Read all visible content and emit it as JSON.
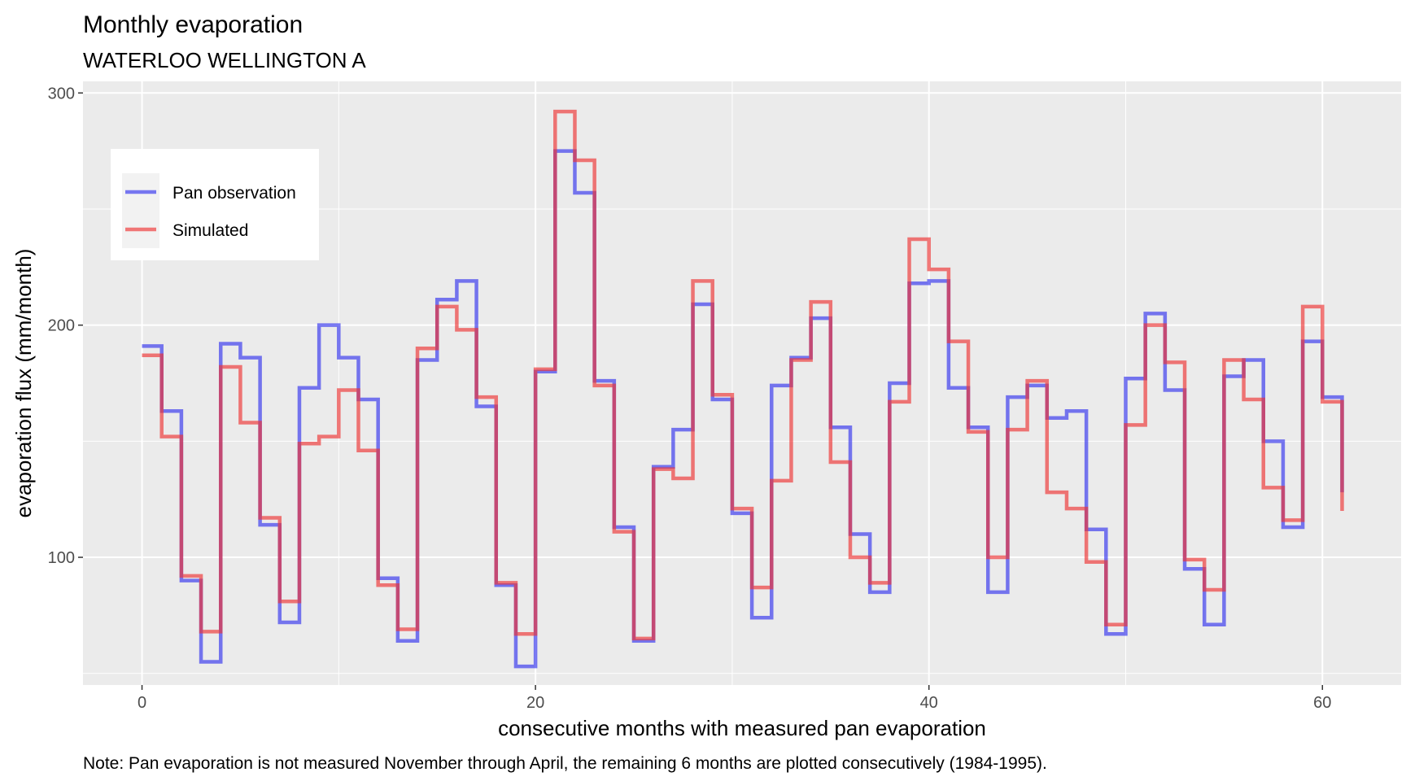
{
  "chart_data": {
    "type": "line",
    "step": true,
    "title": "Monthly evaporation",
    "subtitle": "WATERLOO WELLINGTON A",
    "xlabel": "consecutive months with measured pan evaporation",
    "ylabel": "evaporation flux (mm/month)",
    "caption": "Note: Pan evaporation is not measured November through April, the remaining 6 months are plotted consecutively (1984-1995).",
    "xlim": [
      -3,
      64
    ],
    "ylim": [
      45,
      305
    ],
    "x_ticks": [
      0,
      20,
      40,
      60
    ],
    "x_tick_labels": [
      "0",
      "20",
      "40",
      "60"
    ],
    "y_ticks": [
      100,
      200,
      300
    ],
    "y_tick_labels": [
      "100",
      "200",
      "300"
    ],
    "grid": true,
    "legend_position": "top-left",
    "x": [
      0,
      1,
      2,
      3,
      4,
      5,
      6,
      7,
      8,
      9,
      10,
      11,
      12,
      13,
      14,
      15,
      16,
      17,
      18,
      19,
      20,
      21,
      22,
      23,
      24,
      25,
      26,
      27,
      28,
      29,
      30,
      31,
      32,
      33,
      34,
      35,
      36,
      37,
      38,
      39,
      40,
      41,
      42,
      43,
      44,
      45,
      46,
      47,
      48,
      49,
      50,
      51,
      52,
      53,
      54,
      55,
      56,
      57,
      58,
      59,
      60,
      61
    ],
    "series": [
      {
        "name": "Pan observation",
        "color": "#3333ee",
        "values": [
          191,
          163,
          90,
          55,
          192,
          186,
          114,
          72,
          173,
          200,
          186,
          168,
          91,
          64,
          185,
          211,
          219,
          165,
          88,
          53,
          180,
          275,
          257,
          176,
          113,
          64,
          139,
          155,
          209,
          168,
          119,
          74,
          174,
          186,
          203,
          156,
          110,
          85,
          175,
          218,
          219,
          173,
          156,
          85,
          169,
          174,
          160,
          163,
          112,
          67,
          177,
          205,
          172,
          95,
          71,
          178,
          185,
          150,
          113,
          193,
          169,
          128
        ]
      },
      {
        "name": "Simulated",
        "color": "#ee3333",
        "values": [
          187,
          152,
          92,
          68,
          182,
          158,
          117,
          81,
          149,
          152,
          172,
          146,
          88,
          69,
          190,
          208,
          198,
          169,
          89,
          67,
          181,
          292,
          271,
          174,
          111,
          65,
          138,
          134,
          219,
          170,
          121,
          87,
          133,
          185,
          210,
          141,
          100,
          89,
          167,
          237,
          224,
          193,
          154,
          100,
          155,
          176,
          128,
          121,
          98,
          71,
          157,
          200,
          184,
          99,
          86,
          185,
          168,
          130,
          116,
          208,
          167,
          120
        ]
      }
    ]
  }
}
